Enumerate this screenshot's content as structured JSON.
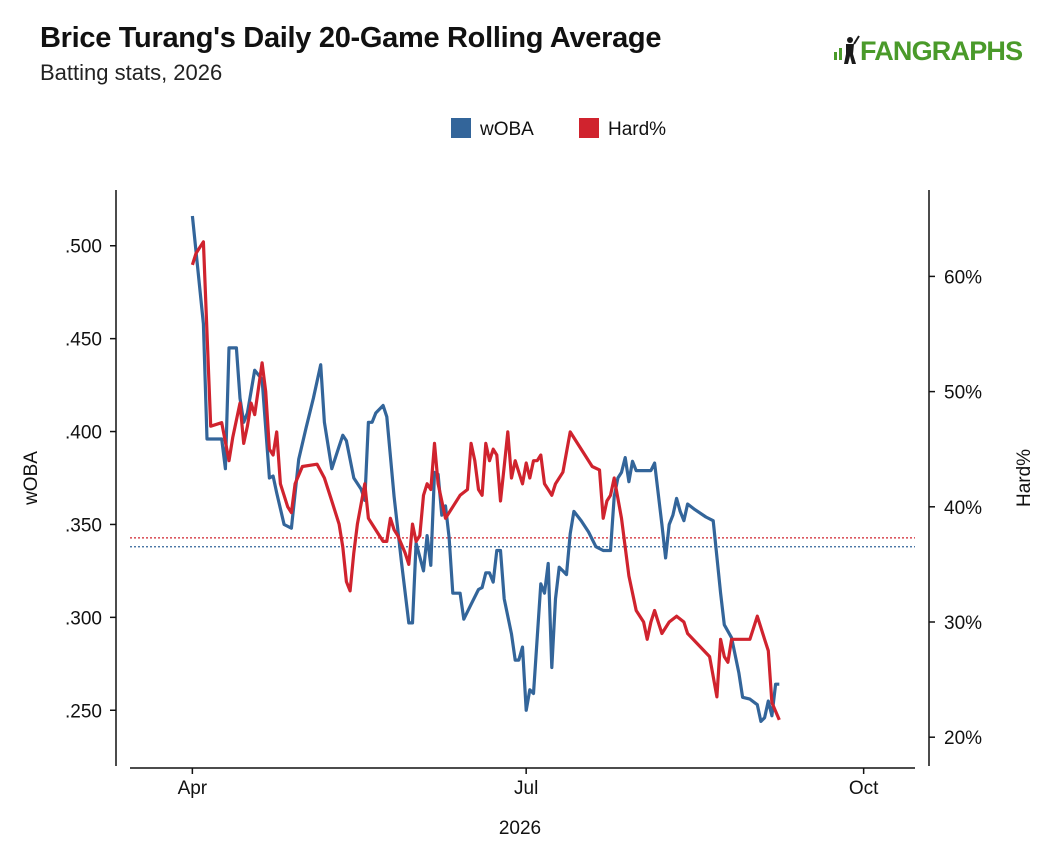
{
  "header": {
    "title": "Brice Turang's Daily 20-Game Rolling Average",
    "subtitle": "Batting stats, 2026",
    "logo_text": "FANGRAPHS"
  },
  "colors": {
    "woba": "#33659a",
    "hard": "#d0232e"
  },
  "chart_data": {
    "type": "line",
    "xlabel": "2026",
    "ylabel_left": "wOBA",
    "ylabel_right": "Hard%",
    "x_ticks": [
      "Apr",
      "Jul",
      "Oct"
    ],
    "y_left_ticks": [
      ".250",
      ".300",
      ".350",
      ".400",
      ".450",
      ".500"
    ],
    "y_right_ticks": [
      "20%",
      "30%",
      "40%",
      "50%",
      "60%"
    ],
    "xlim": [
      "2026-03-15",
      "2026-10-15"
    ],
    "ylim_left": [
      0.22,
      0.53
    ],
    "ylim_right": [
      17.5,
      67.5
    ],
    "legend_position": "top-center",
    "grid": false,
    "series": [
      {
        "name": "wOBA",
        "axis": "left",
        "color": "#33659a",
        "reference_line": 0.338,
        "data": [
          [
            "2026-04-01",
            0.516
          ],
          [
            "2026-04-04",
            0.458
          ],
          [
            "2026-04-05",
            0.396
          ],
          [
            "2026-04-09",
            0.396
          ],
          [
            "2026-04-10",
            0.38
          ],
          [
            "2026-04-11",
            0.445
          ],
          [
            "2026-04-13",
            0.445
          ],
          [
            "2026-04-14",
            0.418
          ],
          [
            "2026-04-15",
            0.405
          ],
          [
            "2026-04-16",
            0.41
          ],
          [
            "2026-04-18",
            0.433
          ],
          [
            "2026-04-20",
            0.428
          ],
          [
            "2026-04-22",
            0.375
          ],
          [
            "2026-04-23",
            0.376
          ],
          [
            "2026-04-24",
            0.367
          ],
          [
            "2026-04-26",
            0.35
          ],
          [
            "2026-04-28",
            0.348
          ],
          [
            "2026-04-30",
            0.385
          ],
          [
            "2026-05-02",
            0.402
          ],
          [
            "2026-05-04",
            0.418
          ],
          [
            "2026-05-06",
            0.436
          ],
          [
            "2026-05-07",
            0.405
          ],
          [
            "2026-05-09",
            0.38
          ],
          [
            "2026-05-11",
            0.392
          ],
          [
            "2026-05-12",
            0.398
          ],
          [
            "2026-05-13",
            0.395
          ],
          [
            "2026-05-15",
            0.375
          ],
          [
            "2026-05-17",
            0.369
          ],
          [
            "2026-05-18",
            0.363
          ],
          [
            "2026-05-19",
            0.405
          ],
          [
            "2026-05-20",
            0.405
          ],
          [
            "2026-05-21",
            0.41
          ],
          [
            "2026-05-23",
            0.414
          ],
          [
            "2026-05-24",
            0.408
          ],
          [
            "2026-05-26",
            0.365
          ],
          [
            "2026-05-28",
            0.33
          ],
          [
            "2026-05-30",
            0.297
          ],
          [
            "2026-05-31",
            0.297
          ],
          [
            "2026-06-01",
            0.34
          ],
          [
            "2026-06-03",
            0.325
          ],
          [
            "2026-06-04",
            0.344
          ],
          [
            "2026-06-05",
            0.328
          ],
          [
            "2026-06-06",
            0.378
          ],
          [
            "2026-06-07",
            0.377
          ],
          [
            "2026-06-08",
            0.355
          ],
          [
            "2026-06-09",
            0.36
          ],
          [
            "2026-06-10",
            0.343
          ],
          [
            "2026-06-11",
            0.313
          ],
          [
            "2026-06-13",
            0.313
          ],
          [
            "2026-06-14",
            0.299
          ],
          [
            "2026-06-16",
            0.307
          ],
          [
            "2026-06-18",
            0.315
          ],
          [
            "2026-06-19",
            0.316
          ],
          [
            "2026-06-20",
            0.324
          ],
          [
            "2026-06-21",
            0.324
          ],
          [
            "2026-06-22",
            0.319
          ],
          [
            "2026-06-23",
            0.336
          ],
          [
            "2026-06-24",
            0.336
          ],
          [
            "2026-06-25",
            0.31
          ],
          [
            "2026-06-27",
            0.291
          ],
          [
            "2026-06-28",
            0.277
          ],
          [
            "2026-06-29",
            0.277
          ],
          [
            "2026-06-30",
            0.284
          ],
          [
            "2026-07-01",
            0.25
          ],
          [
            "2026-07-02",
            0.261
          ],
          [
            "2026-07-03",
            0.259
          ],
          [
            "2026-07-05",
            0.318
          ],
          [
            "2026-07-06",
            0.313
          ],
          [
            "2026-07-07",
            0.329
          ],
          [
            "2026-07-08",
            0.273
          ],
          [
            "2026-07-09",
            0.31
          ],
          [
            "2026-07-10",
            0.327
          ],
          [
            "2026-07-11",
            0.325
          ],
          [
            "2026-07-12",
            0.323
          ],
          [
            "2026-07-13",
            0.345
          ],
          [
            "2026-07-14",
            0.357
          ],
          [
            "2026-07-16",
            0.352
          ],
          [
            "2026-07-18",
            0.346
          ],
          [
            "2026-07-20",
            0.338
          ],
          [
            "2026-07-22",
            0.336
          ],
          [
            "2026-07-24",
            0.336
          ],
          [
            "2026-07-25",
            0.365
          ],
          [
            "2026-07-26",
            0.375
          ],
          [
            "2026-07-27",
            0.378
          ],
          [
            "2026-07-28",
            0.386
          ],
          [
            "2026-07-29",
            0.373
          ],
          [
            "2026-07-30",
            0.384
          ],
          [
            "2026-07-31",
            0.379
          ],
          [
            "2026-08-04",
            0.379
          ],
          [
            "2026-08-05",
            0.383
          ],
          [
            "2026-08-07",
            0.35
          ],
          [
            "2026-08-08",
            0.332
          ],
          [
            "2026-08-09",
            0.35
          ],
          [
            "2026-08-10",
            0.355
          ],
          [
            "2026-08-11",
            0.364
          ],
          [
            "2026-08-12",
            0.357
          ],
          [
            "2026-08-13",
            0.352
          ],
          [
            "2026-08-14",
            0.361
          ],
          [
            "2026-08-16",
            0.358
          ],
          [
            "2026-08-19",
            0.354
          ],
          [
            "2026-08-21",
            0.352
          ],
          [
            "2026-08-23",
            0.313
          ],
          [
            "2026-08-24",
            0.296
          ],
          [
            "2026-08-26",
            0.289
          ],
          [
            "2026-08-28",
            0.27
          ],
          [
            "2026-08-29",
            0.257
          ],
          [
            "2026-08-31",
            0.256
          ],
          [
            "2026-09-02",
            0.253
          ],
          [
            "2026-09-03",
            0.244
          ],
          [
            "2026-09-04",
            0.246
          ],
          [
            "2026-09-05",
            0.255
          ],
          [
            "2026-09-06",
            0.247
          ],
          [
            "2026-09-07",
            0.264
          ],
          [
            "2026-09-08",
            0.264
          ]
        ]
      },
      {
        "name": "Hard%",
        "axis": "right",
        "color": "#d0232e",
        "reference_line": 37.3,
        "data": [
          [
            "2026-04-01",
            61.0
          ],
          [
            "2026-04-02",
            62.0
          ],
          [
            "2026-04-04",
            63.0
          ],
          [
            "2026-04-06",
            47.0
          ],
          [
            "2026-04-09",
            47.3
          ],
          [
            "2026-04-11",
            44.0
          ],
          [
            "2026-04-12",
            46.0
          ],
          [
            "2026-04-14",
            49.0
          ],
          [
            "2026-04-15",
            45.5
          ],
          [
            "2026-04-16",
            47.0
          ],
          [
            "2026-04-17",
            49.0
          ],
          [
            "2026-04-18",
            48.0
          ],
          [
            "2026-04-20",
            52.5
          ],
          [
            "2026-04-21",
            50.0
          ],
          [
            "2026-04-22",
            45.0
          ],
          [
            "2026-04-23",
            44.5
          ],
          [
            "2026-04-24",
            46.5
          ],
          [
            "2026-04-25",
            42.0
          ],
          [
            "2026-04-27",
            40.0
          ],
          [
            "2026-04-28",
            39.5
          ],
          [
            "2026-04-29",
            42.0
          ],
          [
            "2026-05-01",
            43.5
          ],
          [
            "2026-05-05",
            43.7
          ],
          [
            "2026-05-07",
            42.5
          ],
          [
            "2026-05-09",
            40.5
          ],
          [
            "2026-05-11",
            38.5
          ],
          [
            "2026-05-12",
            36.5
          ],
          [
            "2026-05-13",
            33.5
          ],
          [
            "2026-05-14",
            32.7
          ],
          [
            "2026-05-15",
            36.0
          ],
          [
            "2026-05-16",
            38.5
          ],
          [
            "2026-05-18",
            42.0
          ],
          [
            "2026-05-19",
            39.0
          ],
          [
            "2026-05-20",
            38.5
          ],
          [
            "2026-05-22",
            37.5
          ],
          [
            "2026-05-23",
            37.0
          ],
          [
            "2026-05-24",
            37.0
          ],
          [
            "2026-05-25",
            39.0
          ],
          [
            "2026-05-26",
            38.0
          ],
          [
            "2026-05-27",
            37.5
          ],
          [
            "2026-05-29",
            36.0
          ],
          [
            "2026-05-30",
            35.0
          ],
          [
            "2026-05-31",
            38.5
          ],
          [
            "2026-06-01",
            37.0
          ],
          [
            "2026-06-02",
            37.5
          ],
          [
            "2026-06-03",
            41.0
          ],
          [
            "2026-06-04",
            42.0
          ],
          [
            "2026-06-05",
            41.5
          ],
          [
            "2026-06-06",
            45.5
          ],
          [
            "2026-06-07",
            42.0
          ],
          [
            "2026-06-09",
            39.0
          ],
          [
            "2026-06-11",
            40.0
          ],
          [
            "2026-06-13",
            41.0
          ],
          [
            "2026-06-15",
            41.5
          ],
          [
            "2026-06-16",
            45.5
          ],
          [
            "2026-06-17",
            44.0
          ],
          [
            "2026-06-18",
            41.5
          ],
          [
            "2026-06-19",
            41.0
          ],
          [
            "2026-06-20",
            45.5
          ],
          [
            "2026-06-21",
            44.0
          ],
          [
            "2026-06-22",
            45.0
          ],
          [
            "2026-06-23",
            44.5
          ],
          [
            "2026-06-24",
            40.5
          ],
          [
            "2026-06-25",
            43.5
          ],
          [
            "2026-06-26",
            46.5
          ],
          [
            "2026-06-27",
            42.5
          ],
          [
            "2026-06-28",
            44.0
          ],
          [
            "2026-06-29",
            43.0
          ],
          [
            "2026-06-30",
            42.0
          ],
          [
            "2026-07-01",
            43.8
          ],
          [
            "2026-07-02",
            42.5
          ],
          [
            "2026-07-03",
            44.0
          ],
          [
            "2026-07-04",
            44.0
          ],
          [
            "2026-07-05",
            44.5
          ],
          [
            "2026-07-06",
            42.0
          ],
          [
            "2026-07-07",
            41.5
          ],
          [
            "2026-07-08",
            41.0
          ],
          [
            "2026-07-09",
            42.0
          ],
          [
            "2026-07-11",
            43.0
          ],
          [
            "2026-07-13",
            46.5
          ],
          [
            "2026-07-15",
            45.5
          ],
          [
            "2026-07-17",
            44.5
          ],
          [
            "2026-07-19",
            43.5
          ],
          [
            "2026-07-21",
            43.2
          ],
          [
            "2026-07-22",
            39.0
          ],
          [
            "2026-07-23",
            40.5
          ],
          [
            "2026-07-24",
            41.0
          ],
          [
            "2026-07-25",
            42.5
          ],
          [
            "2026-07-27",
            39.0
          ],
          [
            "2026-07-29",
            34.0
          ],
          [
            "2026-07-31",
            31.0
          ],
          [
            "2026-08-02",
            30.0
          ],
          [
            "2026-08-03",
            28.5
          ],
          [
            "2026-08-04",
            30.0
          ],
          [
            "2026-08-05",
            31.0
          ],
          [
            "2026-08-06",
            30.0
          ],
          [
            "2026-08-07",
            29.0
          ],
          [
            "2026-08-09",
            30.0
          ],
          [
            "2026-08-11",
            30.5
          ],
          [
            "2026-08-13",
            30.0
          ],
          [
            "2026-08-14",
            29.0
          ],
          [
            "2026-08-20",
            27.0
          ],
          [
            "2026-08-22",
            23.5
          ],
          [
            "2026-08-23",
            28.5
          ],
          [
            "2026-08-24",
            27.0
          ],
          [
            "2026-08-25",
            26.5
          ],
          [
            "2026-08-26",
            28.5
          ],
          [
            "2026-08-31",
            28.5
          ],
          [
            "2026-09-02",
            30.5
          ],
          [
            "2026-09-04",
            28.5
          ],
          [
            "2026-09-05",
            27.5
          ],
          [
            "2026-09-06",
            23.0
          ],
          [
            "2026-09-08",
            21.5
          ]
        ]
      }
    ]
  }
}
